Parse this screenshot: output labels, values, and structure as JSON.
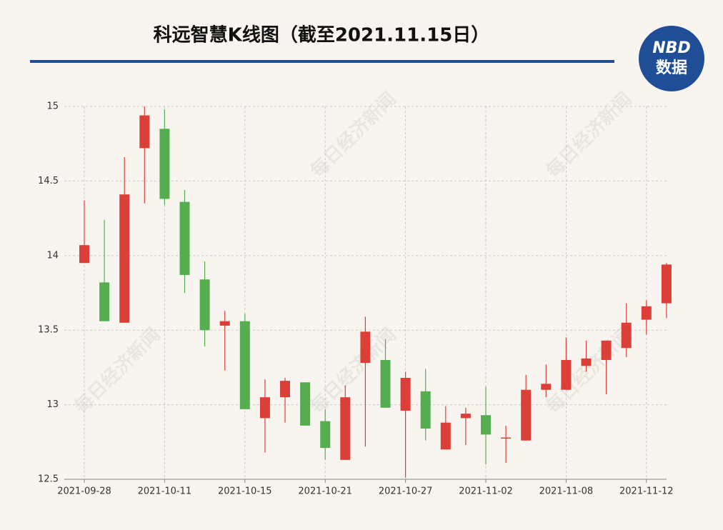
{
  "chart_data": {
    "type": "candlestick",
    "title": "科远智慧K线图（截至2021.11.15日）",
    "logo": {
      "top": "NBD",
      "bottom": "数据"
    },
    "watermark": "每日经济新闻",
    "categories": [
      "2021-09-28",
      null,
      null,
      null,
      "2021-10-11",
      null,
      null,
      null,
      "2021-10-15",
      null,
      null,
      null,
      "2021-10-21",
      null,
      null,
      null,
      "2021-10-27",
      null,
      null,
      null,
      "2021-11-02",
      null,
      null,
      null,
      "2021-11-08",
      null,
      null,
      null,
      "2021-11-12",
      null
    ],
    "open": [
      13.95,
      13.82,
      13.55,
      14.72,
      14.85,
      14.36,
      13.84,
      13.53,
      13.56,
      12.91,
      13.05,
      13.15,
      12.89,
      12.63,
      13.28,
      13.3,
      12.96,
      13.09,
      12.7,
      12.91,
      12.93,
      12.78,
      12.76,
      13.1,
      13.1,
      13.26,
      13.3,
      13.38,
      13.57,
      13.68
    ],
    "high": [
      14.37,
      14.24,
      14.66,
      15.0,
      14.98,
      14.44,
      13.96,
      13.63,
      13.61,
      13.17,
      13.18,
      13.15,
      12.97,
      13.13,
      13.59,
      13.44,
      13.22,
      13.24,
      12.99,
      12.98,
      13.12,
      12.86,
      13.2,
      13.27,
      13.45,
      13.43,
      13.43,
      13.68,
      13.7,
      13.95
    ],
    "low": [
      13.95,
      13.56,
      13.55,
      14.35,
      14.34,
      13.75,
      13.39,
      13.23,
      12.97,
      12.68,
      12.88,
      12.86,
      12.63,
      12.63,
      12.72,
      12.98,
      12.51,
      12.76,
      12.7,
      12.73,
      12.6,
      12.61,
      12.76,
      13.05,
      13.1,
      13.22,
      13.07,
      13.32,
      13.47,
      13.58
    ],
    "close": [
      14.07,
      13.56,
      14.41,
      14.94,
      14.38,
      13.87,
      13.5,
      13.56,
      12.97,
      13.05,
      13.16,
      12.86,
      12.71,
      13.05,
      13.49,
      12.98,
      13.18,
      12.84,
      12.88,
      12.94,
      12.8,
      12.78,
      13.1,
      13.14,
      13.3,
      13.31,
      13.43,
      13.55,
      13.66,
      13.94
    ],
    "up_color": "#dc3f37",
    "down_color": "#56ad50",
    "ylim": [
      12.5,
      15
    ],
    "yticks": [
      12.5,
      13,
      13.5,
      14,
      14.5,
      15
    ],
    "grid": true
  }
}
